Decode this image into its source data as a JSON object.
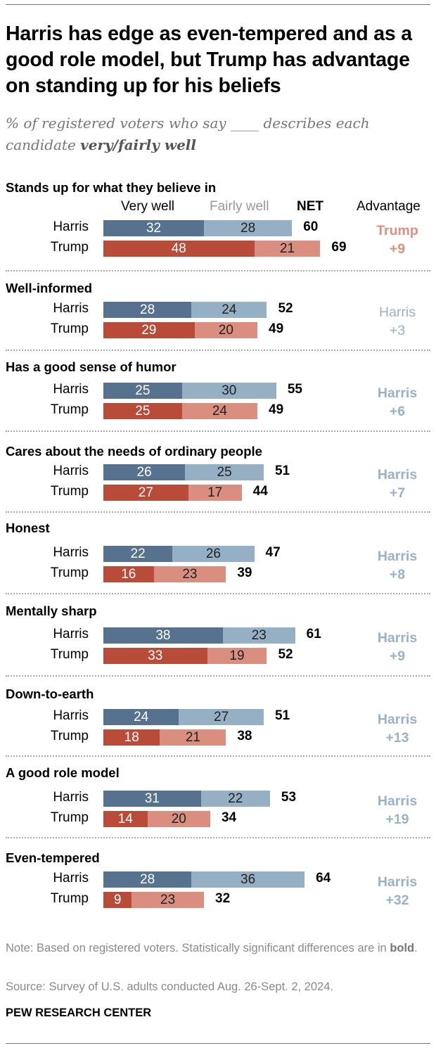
{
  "title": "Harris has edge as even-tempered and as a good role model, but Trump has advantage on standing up for his beliefs",
  "subtitle_a": "% of registered voters who say ____ describes each candidate ",
  "subtitle_b": "very/fairly well",
  "colors": {
    "harris_very": "#56728f",
    "harris_fairly": "#95afc5",
    "trump_very": "#b84c39",
    "trump_fairly": "#da8e7f",
    "adv_trump": "#dd907f",
    "adv_harris": "#9ab1c6"
  },
  "chart_data": {
    "type": "bar",
    "stacked": true,
    "orientation": "horizontal",
    "headers": {
      "very": "Very well",
      "fairly": "Fairly well",
      "net": "NET",
      "advantage": "Advantage"
    },
    "candidates": [
      "Harris",
      "Trump"
    ],
    "groups": [
      {
        "label": "Stands up for what they believe in",
        "harris": {
          "very": 32,
          "fairly": 28,
          "net": 60
        },
        "trump": {
          "very": 48,
          "fairly": 21,
          "net": 69
        },
        "advantage": {
          "who": "Trump",
          "value": "+9",
          "significant": true
        }
      },
      {
        "label": "Well-informed",
        "harris": {
          "very": 28,
          "fairly": 24,
          "net": 52
        },
        "trump": {
          "very": 29,
          "fairly": 20,
          "net": 49
        },
        "advantage": {
          "who": "Harris",
          "value": "+3",
          "significant": false
        }
      },
      {
        "label": "Has a good sense of humor",
        "harris": {
          "very": 25,
          "fairly": 30,
          "net": 55
        },
        "trump": {
          "very": 25,
          "fairly": 24,
          "net": 49
        },
        "advantage": {
          "who": "Harris",
          "value": "+6",
          "significant": true
        }
      },
      {
        "label": "Cares about the needs of ordinary people",
        "harris": {
          "very": 26,
          "fairly": 25,
          "net": 51
        },
        "trump": {
          "very": 27,
          "fairly": 17,
          "net": 44
        },
        "advantage": {
          "who": "Harris",
          "value": "+7",
          "significant": true
        }
      },
      {
        "label": "Honest",
        "harris": {
          "very": 22,
          "fairly": 26,
          "net": 47
        },
        "trump": {
          "very": 16,
          "fairly": 23,
          "net": 39
        },
        "advantage": {
          "who": "Harris",
          "value": "+8",
          "significant": true
        }
      },
      {
        "label": "Mentally sharp",
        "harris": {
          "very": 38,
          "fairly": 23,
          "net": 61
        },
        "trump": {
          "very": 33,
          "fairly": 19,
          "net": 52
        },
        "advantage": {
          "who": "Harris",
          "value": "+9",
          "significant": true
        }
      },
      {
        "label": "Down-to-earth",
        "harris": {
          "very": 24,
          "fairly": 27,
          "net": 51
        },
        "trump": {
          "very": 18,
          "fairly": 21,
          "net": 38
        },
        "advantage": {
          "who": "Harris",
          "value": "+13",
          "significant": true
        }
      },
      {
        "label": "A good role model",
        "harris": {
          "very": 31,
          "fairly": 22,
          "net": 53
        },
        "trump": {
          "very": 14,
          "fairly": 20,
          "net": 34
        },
        "advantage": {
          "who": "Harris",
          "value": "+19",
          "significant": true
        }
      },
      {
        "label": "Even-tempered",
        "harris": {
          "very": 28,
          "fairly": 36,
          "net": 64
        },
        "trump": {
          "very": 9,
          "fairly": 23,
          "net": 32
        },
        "advantage": {
          "who": "Harris",
          "value": "+32",
          "significant": true
        }
      }
    ]
  },
  "note_a": "Note: Based on registered voters. Statistically significant differences are in ",
  "note_bold": "bold",
  "note_end": ".",
  "source": "Source: Survey of U.S. adults conducted Aug. 26-Sept. 2, 2024.",
  "logo": "PEW RESEARCH CENTER"
}
